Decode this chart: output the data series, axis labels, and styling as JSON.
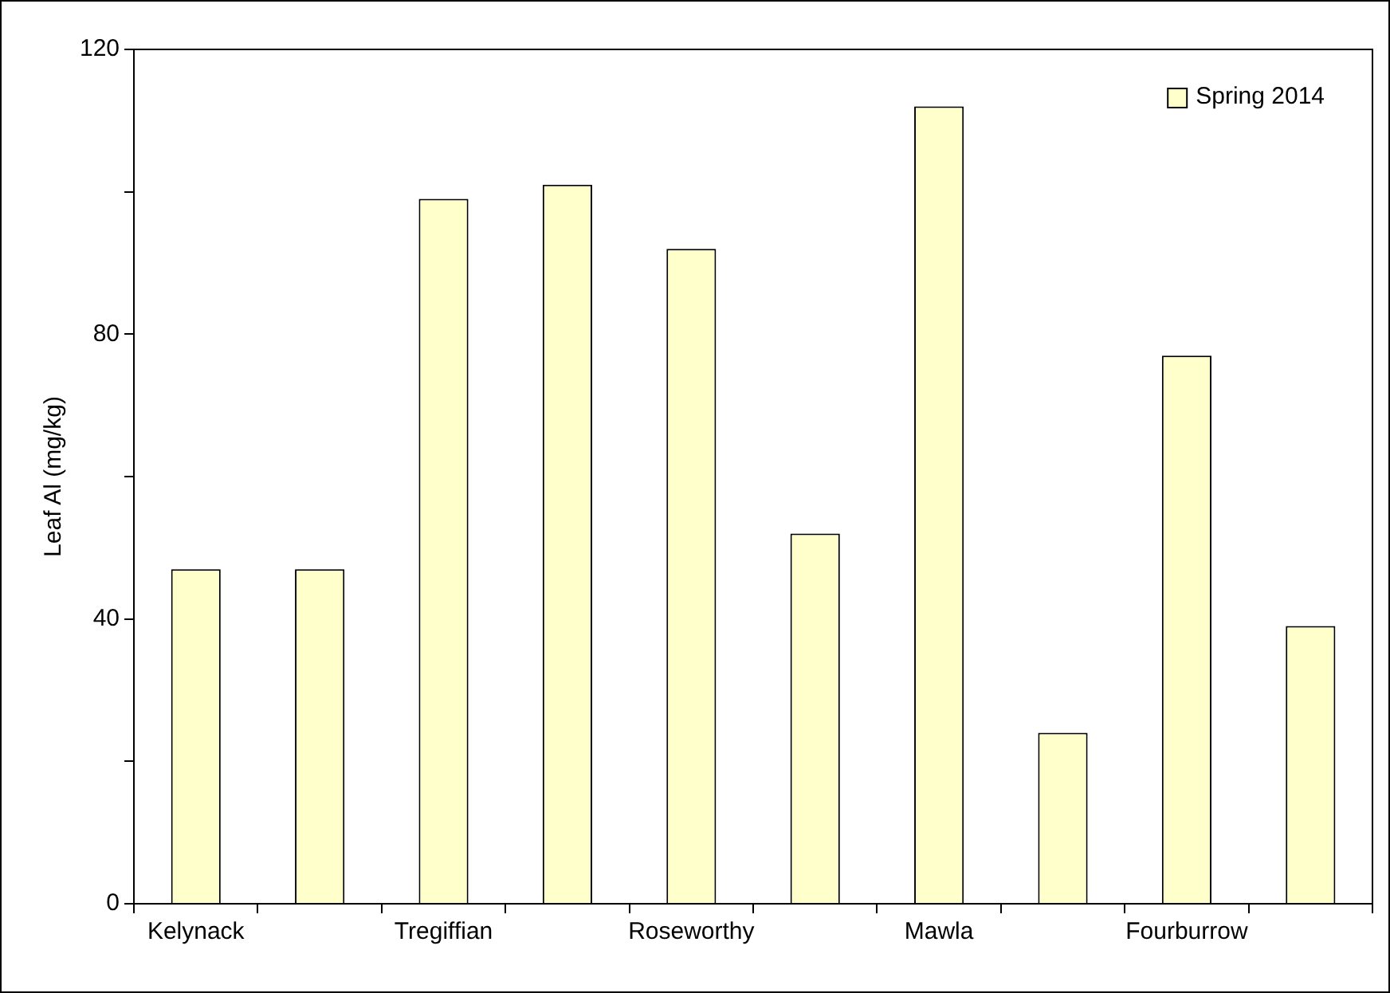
{
  "chart_data": {
    "type": "bar",
    "ylabel": "Leaf Al (mg/kg)",
    "categories": [
      "Kelynack",
      null,
      "Tregiffian",
      null,
      "Roseworthy",
      null,
      "Mawla",
      null,
      "Fourburrow",
      null
    ],
    "series": [
      {
        "name": "Spring 2014",
        "color": "#ffffcc",
        "values": [
          47,
          47,
          99,
          101,
          92,
          52,
          112,
          24,
          77,
          39
        ]
      }
    ],
    "ylim": [
      0,
      120
    ],
    "yticks": [
      0,
      {
        "value": 20,
        "label": null
      },
      40,
      {
        "value": 60,
        "label": null
      },
      80,
      {
        "value": 100,
        "label": null
      },
      120
    ],
    "grid": false,
    "legend": "top right"
  }
}
